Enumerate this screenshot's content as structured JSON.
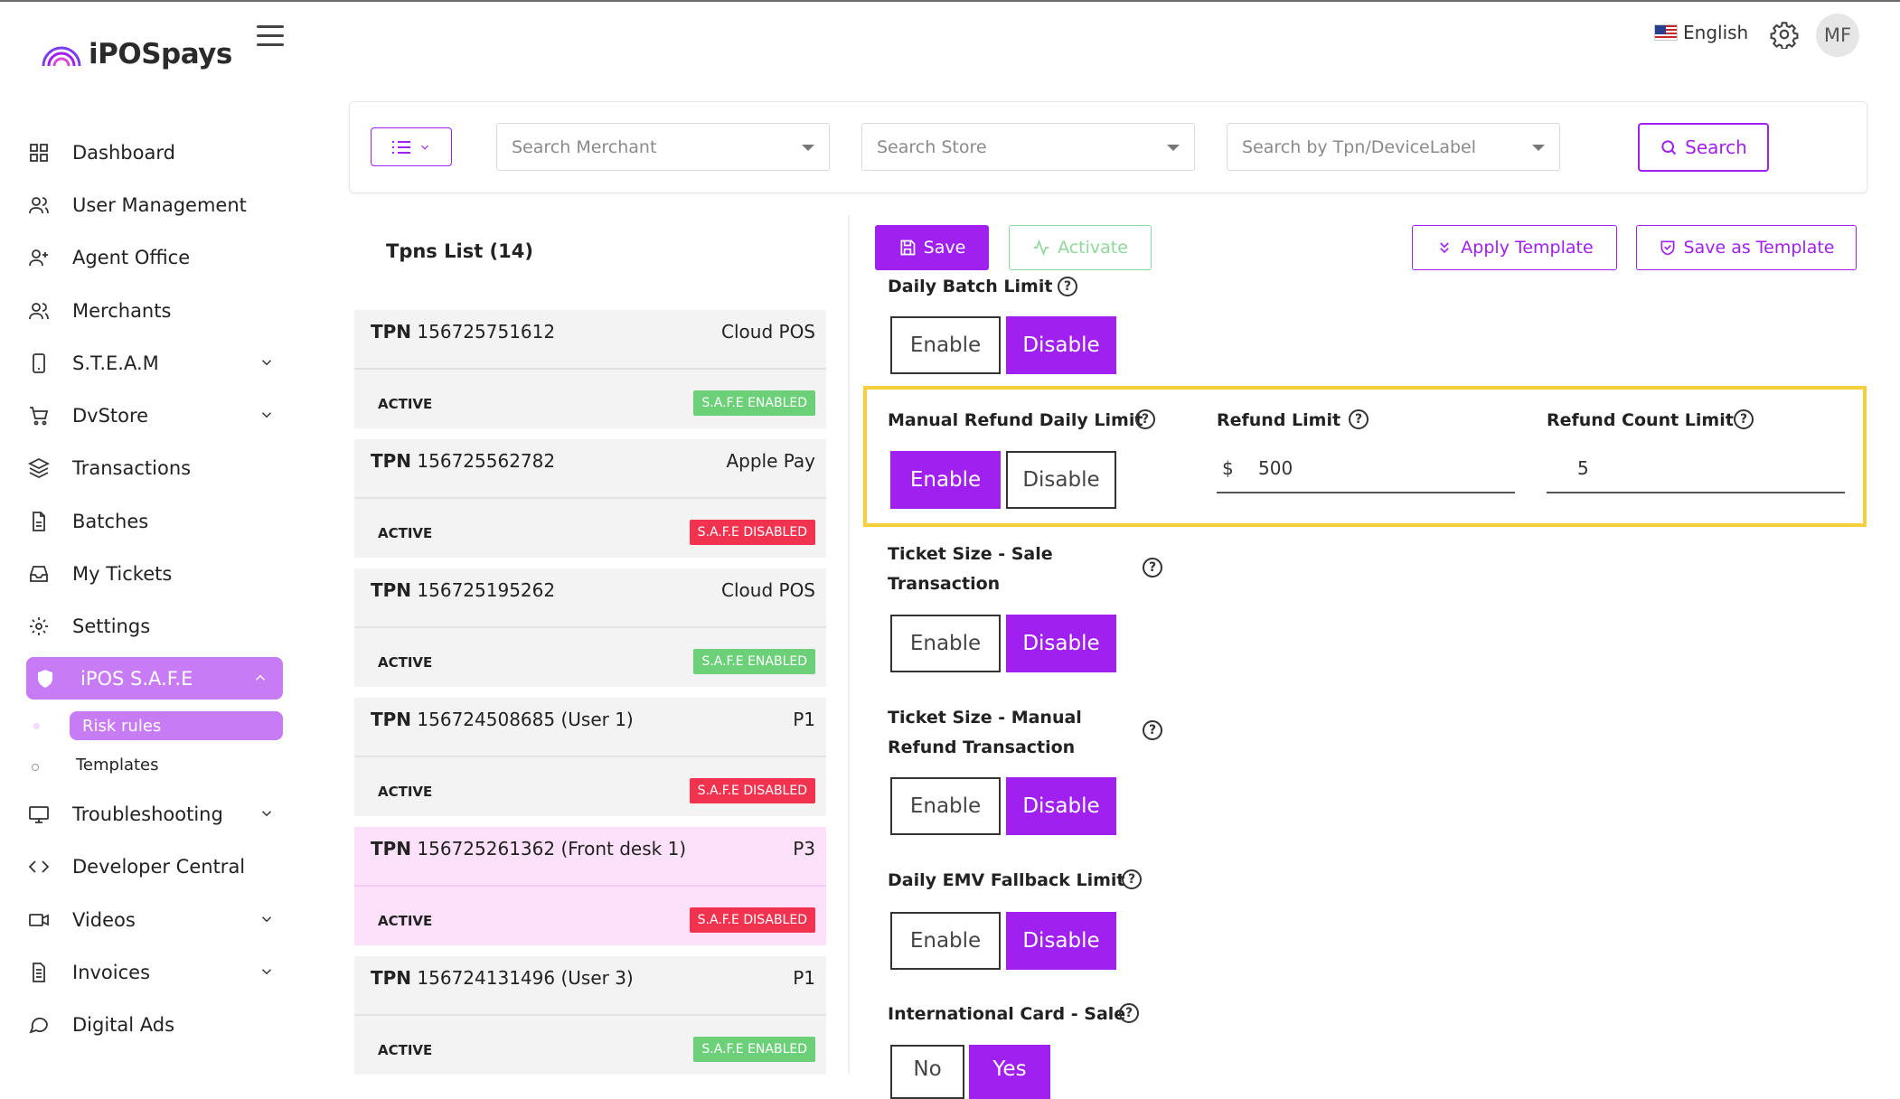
{
  "app": {
    "logo_text": "iPOSpays"
  },
  "topbar": {
    "language": "English",
    "avatar_initials": "MF"
  },
  "sidebar": {
    "items": [
      {
        "label": "Dashboard",
        "icon": "grid-icon"
      },
      {
        "label": "User Management",
        "icon": "users-icon"
      },
      {
        "label": "Agent Office",
        "icon": "user-plus-icon"
      },
      {
        "label": "Merchants",
        "icon": "users-icon"
      },
      {
        "label": "S.T.E.A.M",
        "icon": "smartphone-icon",
        "expandable": true
      },
      {
        "label": "DvStore",
        "icon": "cart-icon",
        "expandable": true
      },
      {
        "label": "Transactions",
        "icon": "layers-icon"
      },
      {
        "label": "Batches",
        "icon": "file-icon"
      },
      {
        "label": "My Tickets",
        "icon": "inbox-icon"
      },
      {
        "label": "Settings",
        "icon": "gear-icon"
      },
      {
        "label": "iPOS S.A.F.E",
        "icon": "shield-icon",
        "active": true
      },
      {
        "label": "Troubleshooting",
        "icon": "monitor-icon",
        "expandable": true
      },
      {
        "label": "Developer Central",
        "icon": "code-icon"
      },
      {
        "label": "Videos",
        "icon": "video-icon",
        "expandable": true
      },
      {
        "label": "Invoices",
        "icon": "file-text-icon",
        "expandable": true
      },
      {
        "label": "Digital Ads",
        "icon": "message-icon"
      }
    ],
    "subitems": {
      "active": "Risk rules",
      "other": "Templates"
    }
  },
  "filters": {
    "merchant_placeholder": "Search Merchant",
    "store_placeholder": "Search Store",
    "tpn_placeholder": "Search by Tpn/DeviceLabel",
    "search_label": "Search"
  },
  "tpn_list": {
    "title": "Tpns List (14)",
    "items": [
      {
        "prefix": "TPN",
        "number": "156725751612",
        "device": "Cloud POS",
        "status": "ACTIVE",
        "safe": "S.A.F.E ENABLED",
        "safe_enabled": true
      },
      {
        "prefix": "TPN",
        "number": "156725562782",
        "device": "Apple Pay",
        "status": "ACTIVE",
        "safe": "S.A.F.E DISABLED",
        "safe_enabled": false
      },
      {
        "prefix": "TPN",
        "number": "156725195262",
        "device": "Cloud POS",
        "status": "ACTIVE",
        "safe": "S.A.F.E ENABLED",
        "safe_enabled": true
      },
      {
        "prefix": "TPN",
        "number": "156724508685 (User 1)",
        "device": "P1",
        "status": "ACTIVE",
        "safe": "S.A.F.E DISABLED",
        "safe_enabled": false
      },
      {
        "prefix": "TPN",
        "number": "156725261362 (Front desk 1)",
        "device": "P3",
        "status": "ACTIVE",
        "safe": "S.A.F.E DISABLED",
        "safe_enabled": false,
        "selected": true
      },
      {
        "prefix": "TPN",
        "number": "156724131496 (User 3)",
        "device": "P1",
        "status": "ACTIVE",
        "safe": "S.A.F.E ENABLED",
        "safe_enabled": true
      }
    ]
  },
  "actions": {
    "save": "Save",
    "activate": "Activate",
    "apply_template": "Apply Template",
    "save_as_template": "Save as Template"
  },
  "rules": {
    "enable": "Enable",
    "disable": "Disable",
    "daily_batch": {
      "label": "Daily Batch Limit",
      "value": "Disable"
    },
    "manual_refund": {
      "label": "Manual Refund Daily Limit",
      "value": "Enable",
      "refund_limit_label": "Refund Limit",
      "currency": "$",
      "refund_limit_value": "500",
      "refund_count_label": "Refund Count Limit",
      "refund_count_value": "5"
    },
    "ticket_sale": {
      "label_line1": "Ticket Size - Sale",
      "label_line2": "Transaction",
      "value": "Disable"
    },
    "ticket_refund": {
      "label_line1": "Ticket Size - Manual",
      "label_line2": "Refund Transaction",
      "value": "Disable"
    },
    "emv_fallback": {
      "label": "Daily EMV Fallback Limit",
      "value": "Disable"
    },
    "intl_card": {
      "label": "International Card - Sale",
      "no": "No",
      "yes": "Yes",
      "value": "Yes"
    }
  },
  "colors": {
    "accent": "#a020f0",
    "accent_light": "#c77bf4",
    "enabled": "#6cd079",
    "disabled": "#f2334f",
    "highlight": "#f5cf3c"
  }
}
